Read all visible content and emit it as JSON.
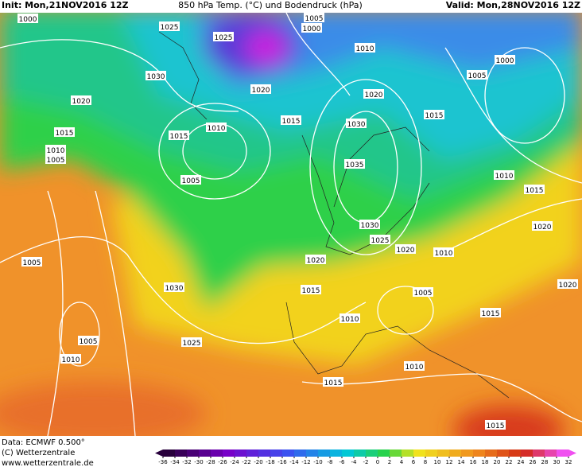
{
  "header": {
    "init": "Init: Mon,21NOV2016 12Z",
    "title": "850 hPa Temp. (°C) und Bodendruck (hPa)",
    "valid": "Valid: Mon,28NOV2016 12Z"
  },
  "isobar_labels": [
    "1000",
    "1025",
    "1025",
    "1005",
    "1000",
    "1010",
    "1000",
    "1005",
    "1030",
    "1020",
    "1020",
    "1020",
    "1015",
    "1010",
    "1015",
    "1015",
    "1015",
    "1030",
    "1010",
    "1005",
    "1005",
    "1035",
    "1010",
    "1015",
    "1020",
    "1030",
    "1025",
    "1020",
    "1010",
    "1020",
    "1005",
    "1030",
    "1015",
    "1005",
    "1020",
    "1010",
    "1015",
    "1005",
    "1025",
    "1010",
    "1010",
    "1015",
    "1015"
  ],
  "legend": {
    "ticks": [
      -36,
      -34,
      -32,
      -30,
      -28,
      -26,
      -24,
      -22,
      -20,
      -18,
      -16,
      -14,
      -12,
      -10,
      -8,
      -6,
      -4,
      -2,
      0,
      2,
      4,
      6,
      8,
      10,
      12,
      14,
      16,
      18,
      20,
      22,
      24,
      26,
      28,
      30,
      32
    ]
  },
  "footer": {
    "data": "Data: ECMWF  0.500°",
    "copyright": "(C) Wetterzentrale",
    "url": "www.wetterzentrale.de"
  }
}
